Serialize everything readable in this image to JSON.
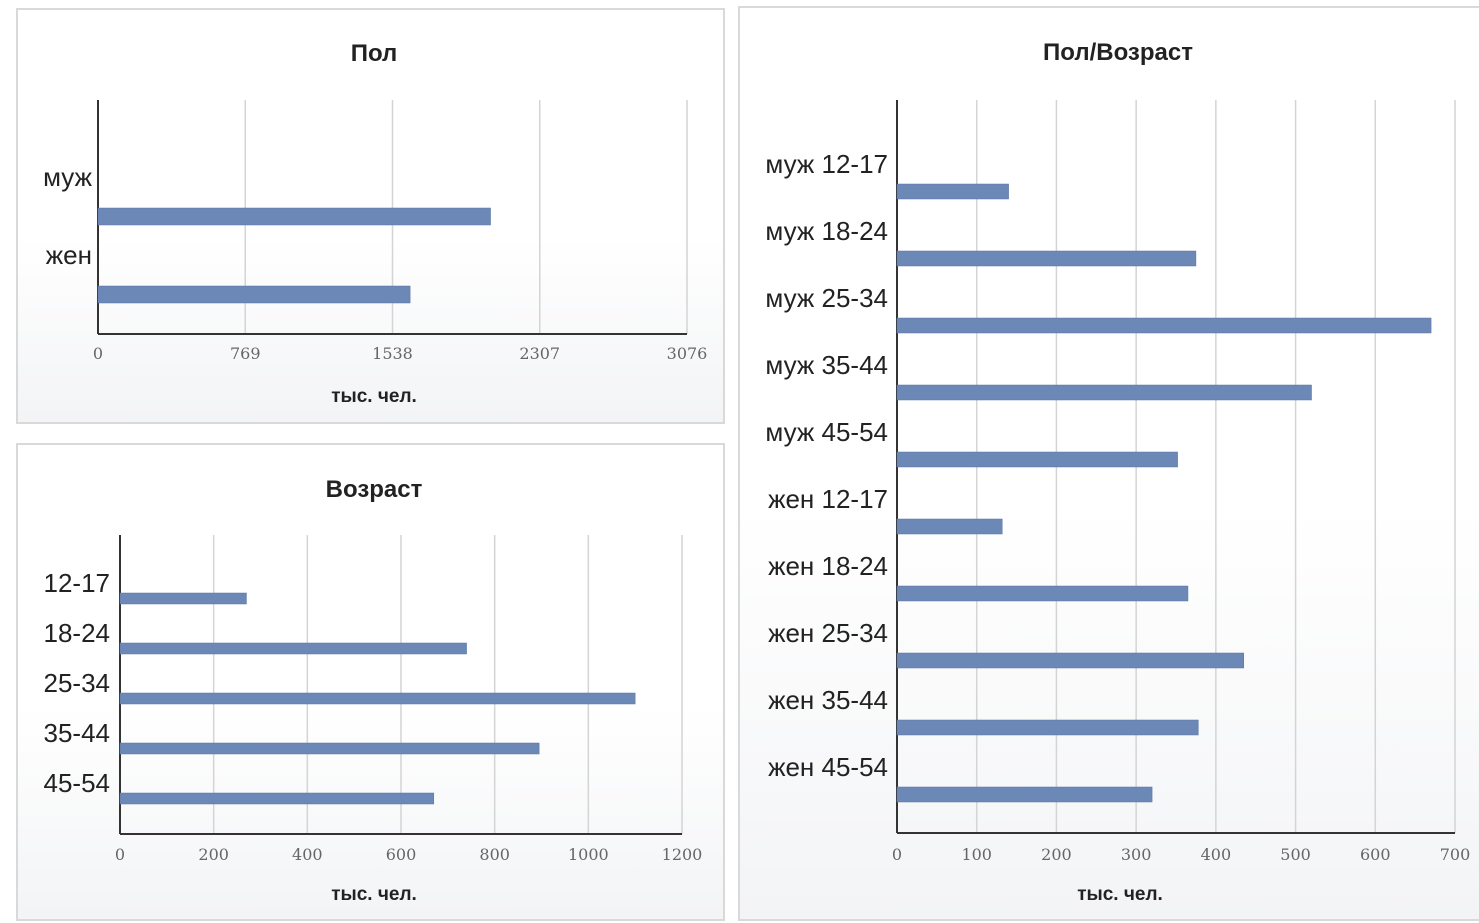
{
  "chart_data": [
    {
      "type": "bar",
      "orientation": "horizontal",
      "title": "Пол",
      "xlabel": "тыс. чел.",
      "categories": [
        "муж",
        "жен"
      ],
      "values": [
        2050,
        1630
      ],
      "xlim": [
        0,
        3076
      ],
      "xticks": [
        0,
        769,
        1538,
        2307,
        3076
      ],
      "grid": true,
      "legend": "none",
      "color": "#6c88b7"
    },
    {
      "type": "bar",
      "orientation": "horizontal",
      "title": "Возраст",
      "xlabel": "тыс. чел.",
      "categories": [
        "12-17",
        "18-24",
        "25-34",
        "35-44",
        "45-54"
      ],
      "values": [
        270,
        740,
        1100,
        895,
        670
      ],
      "xlim": [
        0,
        1200
      ],
      "xticks": [
        0,
        200,
        400,
        600,
        800,
        1000,
        1200
      ],
      "grid": true,
      "legend": "none",
      "color": "#6c88b7"
    },
    {
      "type": "bar",
      "orientation": "horizontal",
      "title": "Пол/Возраст",
      "xlabel": "тыс. чел.",
      "categories": [
        "муж 12-17",
        "муж 18-24",
        "муж 25-34",
        "муж 35-44",
        "муж 45-54",
        "жен 12-17",
        "жен 18-24",
        "жен 25-34",
        "жен 35-44",
        "жен 45-54"
      ],
      "values": [
        140,
        375,
        670,
        520,
        352,
        132,
        365,
        435,
        378,
        320
      ],
      "xlim": [
        0,
        700
      ],
      "xticks": [
        0,
        100,
        200,
        300,
        400,
        500,
        600,
        700
      ],
      "grid": true,
      "legend": "none",
      "color": "#6c88b7"
    }
  ]
}
